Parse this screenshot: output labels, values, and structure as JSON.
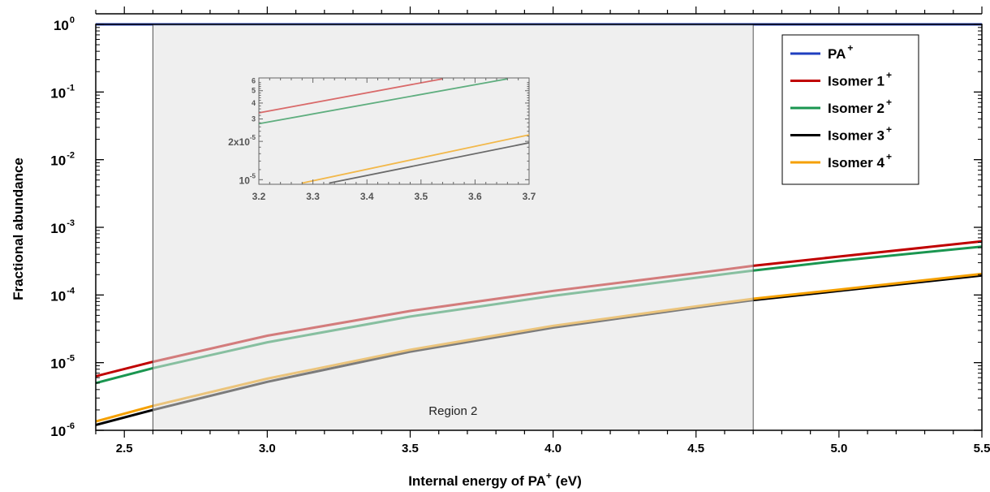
{
  "chart_data": {
    "type": "line",
    "xlabel": "Internal energy of PA",
    "xlabel_sup": "+",
    "xlabel_unit": " (eV)",
    "ylabel": "Fractional abundance",
    "yscale": "log",
    "xlim": [
      2.4,
      5.5
    ],
    "ylim": [
      1e-06,
      1
    ],
    "x_ticks": [
      "2.5",
      "3.0",
      "3.5",
      "4.0",
      "4.5",
      "5.0",
      "5.5"
    ],
    "x_tick_values": [
      2.5,
      3.0,
      3.5,
      4.0,
      4.5,
      5.0,
      5.5
    ],
    "y_ticks": [
      {
        "base": "10",
        "exp": "0",
        "value": 1
      },
      {
        "base": "10",
        "exp": "-1",
        "value": 0.1
      },
      {
        "base": "10",
        "exp": "-2",
        "value": 0.01
      },
      {
        "base": "10",
        "exp": "-3",
        "value": 0.001
      },
      {
        "base": "10",
        "exp": "-4",
        "value": 0.0001
      },
      {
        "base": "10",
        "exp": "-5",
        "value": 1e-05
      },
      {
        "base": "10",
        "exp": "-6",
        "value": 1e-06
      }
    ],
    "legend_position": "top-right",
    "series": [
      {
        "name": "PA",
        "sup": "+",
        "color": "#1f3fbf",
        "x": [
          2.4,
          5.5
        ],
        "y": [
          1.0,
          1.0
        ]
      },
      {
        "name": "Isomer 1",
        "sup": "+",
        "color": "#c00000",
        "x": [
          2.4,
          2.6,
          3.0,
          3.5,
          4.0,
          4.5,
          4.7,
          5.0,
          5.5
        ],
        "y": [
          6.3e-06,
          1.03e-05,
          2.5e-05,
          5.8e-05,
          0.000115,
          0.00021,
          0.00027,
          0.00037,
          0.00062
        ]
      },
      {
        "name": "Isomer 2",
        "sup": "+",
        "color": "#1a9650",
        "x": [
          2.4,
          2.6,
          3.0,
          3.5,
          4.0,
          4.5,
          4.7,
          5.0,
          5.5
        ],
        "y": [
          5e-06,
          8.3e-06,
          2e-05,
          4.8e-05,
          9.7e-05,
          0.00018,
          0.00023,
          0.00032,
          0.00052
        ]
      },
      {
        "name": "Isomer 3",
        "sup": "+",
        "color": "#000000",
        "x": [
          2.4,
          2.6,
          3.0,
          3.5,
          4.0,
          4.5,
          4.7,
          5.0,
          5.5
        ],
        "y": [
          1.2e-06,
          2e-06,
          5.2e-06,
          1.45e-05,
          3.3e-05,
          6.5e-05,
          8.4e-05,
          0.000115,
          0.000195
        ]
      },
      {
        "name": "Isomer 4",
        "sup": "+",
        "color": "#f5a000",
        "x": [
          2.4,
          2.6,
          3.0,
          3.5,
          4.0,
          4.5,
          4.7,
          5.0,
          5.5
        ],
        "y": [
          1.35e-06,
          2.3e-06,
          5.8e-06,
          1.55e-05,
          3.5e-05,
          6.8e-05,
          8.8e-05,
          0.00012,
          0.000205
        ]
      }
    ],
    "region": {
      "label": "Region 2",
      "x": [
        2.6,
        4.7
      ]
    },
    "inset": {
      "xlim": [
        3.2,
        3.7
      ],
      "x_ticks": [
        "3.2",
        "3.3",
        "3.4",
        "3.5",
        "3.6",
        "3.7"
      ],
      "x_tick_values": [
        3.2,
        3.3,
        3.4,
        3.5,
        3.6,
        3.7
      ],
      "yscale": "log",
      "ylim": [
        9.2e-06,
        6.3e-05
      ],
      "y_ticks": [
        {
          "label": "6",
          "value": 6e-05
        },
        {
          "label": "5",
          "value": 5e-05
        },
        {
          "label": "4",
          "value": 4e-05
        },
        {
          "label": "3",
          "value": 3e-05
        },
        {
          "label": "2x10",
          "exp": "-5",
          "value": 2e-05
        },
        {
          "label": "10",
          "exp": "-5",
          "value": 1e-05
        }
      ],
      "series": [
        {
          "name": "Isomer 1",
          "color": "#d96a6a",
          "x": [
            3.2,
            3.54
          ],
          "y": [
            3.35e-05,
            6.2e-05
          ]
        },
        {
          "name": "Isomer 2",
          "color": "#5fae7f",
          "x": [
            3.2,
            3.66
          ],
          "y": [
            2.75e-05,
            6.2e-05
          ]
        },
        {
          "name": "Isomer 4",
          "color": "#f2b84a",
          "x": [
            3.28,
            3.7
          ],
          "y": [
            9.4e-06,
            2.25e-05
          ]
        },
        {
          "name": "Isomer 3",
          "color": "#6a6a6a",
          "x": [
            3.33,
            3.7
          ],
          "y": [
            9.4e-06,
            1.95e-05
          ]
        }
      ]
    }
  }
}
